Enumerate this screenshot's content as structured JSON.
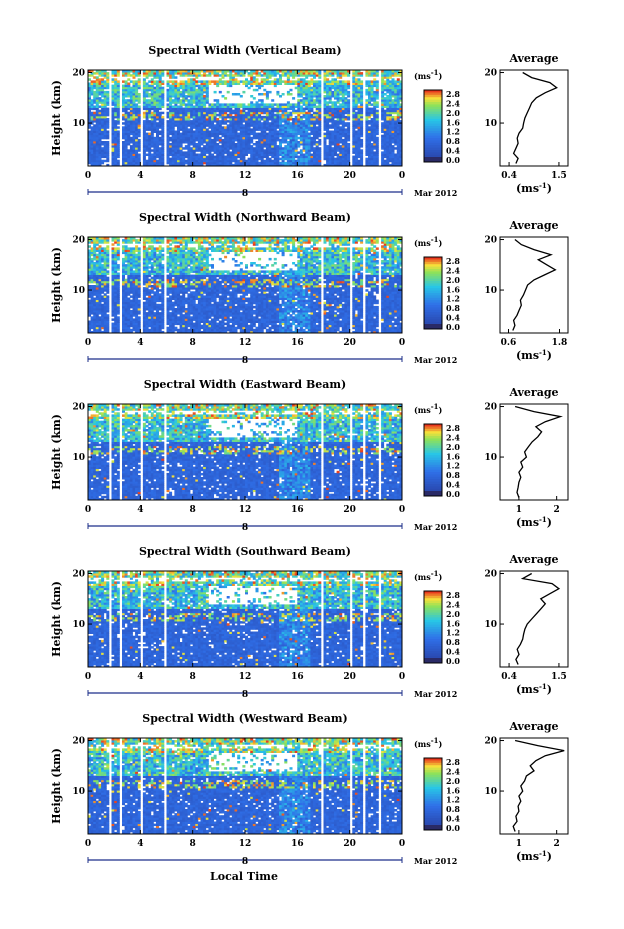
{
  "figure": {
    "xlabel": "Local Time",
    "day_label": "8",
    "date_label": "Mar 2012"
  },
  "colorbar": {
    "unit": "(ms-1)",
    "ticks": [
      "2.8",
      "2.4",
      "2.0",
      "1.6",
      "1.2",
      "0.8",
      "0.4",
      "0.0"
    ],
    "colors": [
      "#e63a1e",
      "#f7921e",
      "#f6e83a",
      "#7ed957",
      "#2ec4e6",
      "#2f80ee",
      "#3d4fc8",
      "#2a2a80"
    ]
  },
  "chart_data": [
    {
      "type": "heatmap",
      "title": "Spectral Width (Vertical Beam)",
      "xlabel": "Local Time",
      "ylabel": "Height (km)",
      "x_ticks": [
        "0",
        "4",
        "8",
        "12",
        "16",
        "20",
        "0"
      ],
      "y_ticks": [
        "10",
        "20"
      ],
      "xlim": [
        0,
        24
      ],
      "ylim": [
        1.5,
        20.5
      ],
      "z_range": [
        0.0,
        3.0
      ],
      "gaps_hours": [
        [
          1.6,
          1.8
        ],
        [
          2.5,
          2.7
        ],
        [
          4.0,
          4.3
        ],
        [
          5.8,
          6.0
        ],
        [
          17.8,
          18.0
        ],
        [
          20.0,
          20.2
        ],
        [
          21.0,
          21.2
        ],
        [
          22.2,
          22.4
        ]
      ],
      "average": {
        "title": "Average",
        "xlabel": "(ms-1)",
        "x_ticks": [
          "0.4",
          "1.5"
        ],
        "xlim": [
          0.2,
          1.7
        ],
        "y_ticks": [
          "10",
          "20"
        ],
        "ylim": [
          1.5,
          20.5
        ],
        "height_km": [
          2,
          3,
          4,
          5,
          6,
          7,
          8,
          9,
          10,
          11,
          12,
          13,
          14,
          15,
          16,
          17,
          18,
          19,
          20
        ],
        "width_ms": [
          0.55,
          0.6,
          0.5,
          0.55,
          0.6,
          0.58,
          0.62,
          0.7,
          0.72,
          0.75,
          0.8,
          0.85,
          0.9,
          1.0,
          1.2,
          1.45,
          1.3,
          0.9,
          0.7
        ]
      }
    },
    {
      "type": "heatmap",
      "title": "Spectral Width (Northward Beam)",
      "xlabel": "Local Time",
      "ylabel": "Height (km)",
      "x_ticks": [
        "0",
        "4",
        "8",
        "12",
        "16",
        "20",
        "0"
      ],
      "y_ticks": [
        "10",
        "20"
      ],
      "xlim": [
        0,
        24
      ],
      "ylim": [
        1.5,
        20.5
      ],
      "z_range": [
        0.0,
        3.0
      ],
      "gaps_hours": [
        [
          1.6,
          1.8
        ],
        [
          2.5,
          2.7
        ],
        [
          4.0,
          4.3
        ],
        [
          5.8,
          6.0
        ],
        [
          17.8,
          18.0
        ],
        [
          20.0,
          20.2
        ],
        [
          21.0,
          21.2
        ],
        [
          22.2,
          22.4
        ]
      ],
      "average": {
        "title": "Average",
        "xlabel": "(ms-1)",
        "x_ticks": [
          "0.6",
          "1.8"
        ],
        "xlim": [
          0.4,
          2.0
        ],
        "y_ticks": [
          "10",
          "20"
        ],
        "ylim": [
          1.5,
          20.5
        ],
        "height_km": [
          2,
          3,
          4,
          5,
          6,
          7,
          8,
          9,
          10,
          11,
          12,
          13,
          14,
          15,
          16,
          17,
          18,
          19,
          20
        ],
        "width_ms": [
          0.7,
          0.75,
          0.72,
          0.8,
          0.85,
          0.9,
          0.88,
          0.95,
          1.0,
          1.05,
          1.2,
          1.45,
          1.7,
          1.5,
          1.3,
          1.6,
          1.2,
          0.9,
          0.75
        ]
      }
    },
    {
      "type": "heatmap",
      "title": "Spectral Width (Eastward Beam)",
      "xlabel": "Local Time",
      "ylabel": "Height (km)",
      "x_ticks": [
        "0",
        "4",
        "8",
        "12",
        "16",
        "20",
        "0"
      ],
      "y_ticks": [
        "10",
        "20"
      ],
      "xlim": [
        0,
        24
      ],
      "ylim": [
        1.5,
        20.5
      ],
      "z_range": [
        0.0,
        3.0
      ],
      "gaps_hours": [
        [
          1.6,
          1.8
        ],
        [
          2.5,
          2.7
        ],
        [
          4.0,
          4.3
        ],
        [
          5.8,
          6.0
        ],
        [
          17.8,
          18.0
        ],
        [
          20.0,
          20.2
        ],
        [
          21.0,
          21.2
        ],
        [
          22.2,
          22.4
        ]
      ],
      "average": {
        "title": "Average",
        "xlabel": "(ms-1)",
        "x_ticks": [
          "1",
          "2"
        ],
        "xlim": [
          0.5,
          2.3
        ],
        "y_ticks": [
          "10",
          "20"
        ],
        "ylim": [
          1.5,
          20.5
        ],
        "height_km": [
          2,
          3,
          4,
          5,
          6,
          7,
          8,
          9,
          10,
          11,
          12,
          13,
          14,
          15,
          16,
          17,
          18,
          19,
          20
        ],
        "width_ms": [
          1.0,
          0.95,
          0.98,
          1.0,
          1.05,
          1.0,
          1.1,
          1.05,
          1.2,
          1.15,
          1.25,
          1.35,
          1.5,
          1.6,
          1.45,
          1.7,
          2.1,
          1.4,
          0.9
        ]
      }
    },
    {
      "type": "heatmap",
      "title": "Spectral Width (Southward Beam)",
      "xlabel": "Local Time",
      "ylabel": "Height (km)",
      "x_ticks": [
        "0",
        "4",
        "8",
        "12",
        "16",
        "20",
        "0"
      ],
      "y_ticks": [
        "10",
        "20"
      ],
      "xlim": [
        0,
        24
      ],
      "ylim": [
        1.5,
        20.5
      ],
      "z_range": [
        0.0,
        3.0
      ],
      "gaps_hours": [
        [
          1.6,
          1.8
        ],
        [
          2.5,
          2.7
        ],
        [
          4.0,
          4.3
        ],
        [
          5.8,
          6.0
        ],
        [
          17.8,
          18.0
        ],
        [
          20.0,
          20.2
        ],
        [
          21.0,
          21.2
        ],
        [
          22.2,
          22.4
        ]
      ],
      "average": {
        "title": "Average",
        "xlabel": "(ms-1)",
        "x_ticks": [
          "0.4",
          "1.5"
        ],
        "xlim": [
          0.2,
          1.7
        ],
        "y_ticks": [
          "10",
          "20"
        ],
        "ylim": [
          1.5,
          20.5
        ],
        "height_km": [
          2,
          3,
          4,
          5,
          6,
          7,
          8,
          9,
          10,
          11,
          12,
          13,
          14,
          15,
          16,
          17,
          18,
          19,
          20
        ],
        "width_ms": [
          0.6,
          0.55,
          0.62,
          0.58,
          0.65,
          0.7,
          0.72,
          0.75,
          0.8,
          0.9,
          1.0,
          1.1,
          1.2,
          1.1,
          1.3,
          1.5,
          1.35,
          0.7,
          0.9
        ]
      }
    },
    {
      "type": "heatmap",
      "title": "Spectral Width (Westward Beam)",
      "xlabel": "Local Time",
      "ylabel": "Height (km)",
      "x_ticks": [
        "0",
        "4",
        "8",
        "12",
        "16",
        "20",
        "0"
      ],
      "y_ticks": [
        "10",
        "20"
      ],
      "xlim": [
        0,
        24
      ],
      "ylim": [
        1.5,
        20.5
      ],
      "z_range": [
        0.0,
        3.0
      ],
      "gaps_hours": [
        [
          1.6,
          1.8
        ],
        [
          2.5,
          2.7
        ],
        [
          4.0,
          4.3
        ],
        [
          5.8,
          6.0
        ],
        [
          17.8,
          18.0
        ],
        [
          20.0,
          20.2
        ],
        [
          21.0,
          21.2
        ],
        [
          22.2,
          22.4
        ]
      ],
      "average": {
        "title": "Average",
        "xlabel": "(ms-1)",
        "x_ticks": [
          "1",
          "2"
        ],
        "xlim": [
          0.5,
          2.3
        ],
        "y_ticks": [
          "10",
          "20"
        ],
        "ylim": [
          1.5,
          20.5
        ],
        "height_km": [
          2,
          3,
          4,
          5,
          6,
          7,
          8,
          9,
          10,
          11,
          12,
          13,
          14,
          15,
          16,
          17,
          18,
          19,
          20
        ],
        "width_ms": [
          0.9,
          0.85,
          0.95,
          0.92,
          1.0,
          0.98,
          1.05,
          1.0,
          1.1,
          1.05,
          1.15,
          1.2,
          1.4,
          1.3,
          1.45,
          1.7,
          2.2,
          1.5,
          0.9
        ]
      }
    }
  ]
}
